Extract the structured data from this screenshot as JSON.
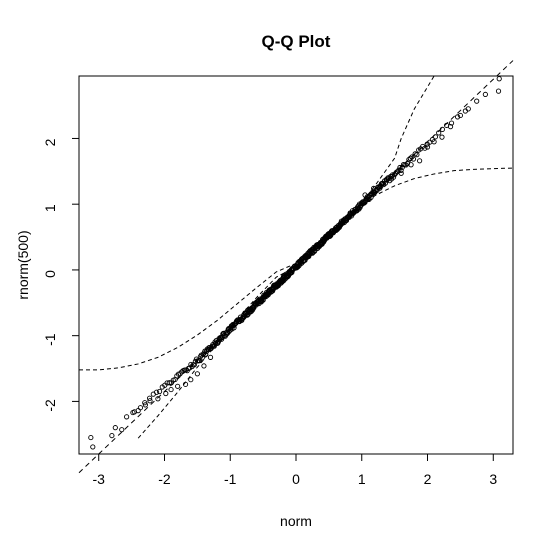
{
  "chart_data": {
    "type": "scatter",
    "title": "Q-Q Plot",
    "xlabel": "norm",
    "ylabel": "rnorm(500)",
    "xlim": [
      -3.3,
      3.3
    ],
    "ylim": [
      -2.8,
      2.95
    ],
    "x_ticks": [
      -3,
      -2,
      -1,
      0,
      1,
      2,
      3
    ],
    "y_ticks": [
      -2,
      -1,
      0,
      1,
      2
    ],
    "grid": false,
    "legend": "none",
    "reference_line": {
      "slope": 0.95,
      "intercept": 0.05
    },
    "confidence_band": {
      "lower": [
        [
          -3.3,
          -1.52
        ],
        [
          -3.0,
          -1.52
        ],
        [
          -2.7,
          -1.49
        ],
        [
          -2.4,
          -1.43
        ],
        [
          -2.1,
          -1.33
        ],
        [
          -1.8,
          -1.18
        ],
        [
          -1.5,
          -0.99
        ],
        [
          -1.2,
          -0.77
        ],
        [
          -0.9,
          -0.52
        ],
        [
          -0.6,
          -0.27
        ],
        [
          -0.3,
          -0.03
        ],
        [
          0.0,
          0.1
        ],
        [
          0.3,
          0.38
        ],
        [
          0.6,
          0.64
        ],
        [
          0.9,
          0.88
        ],
        [
          1.0,
          0.96
        ],
        [
          1.2,
          1.13
        ],
        [
          1.5,
          1.28
        ],
        [
          1.8,
          1.39
        ],
        [
          2.1,
          1.46
        ],
        [
          2.4,
          1.51
        ],
        [
          2.7,
          1.53
        ],
        [
          3.0,
          1.54
        ],
        [
          3.3,
          1.55
        ]
      ],
      "upper": [
        [
          -3.3,
          -3.45
        ],
        [
          -3.0,
          -3.26
        ],
        [
          -2.7,
          -2.95
        ],
        [
          -2.4,
          -2.56
        ],
        [
          -2.1,
          -2.22
        ],
        [
          -1.8,
          -1.86
        ],
        [
          -1.5,
          -1.48
        ],
        [
          -1.2,
          -1.12
        ],
        [
          -0.9,
          -0.76
        ],
        [
          -0.6,
          -0.42
        ],
        [
          -0.3,
          -0.11
        ],
        [
          0.0,
          0.05
        ],
        [
          0.3,
          0.3
        ],
        [
          0.6,
          0.58
        ],
        [
          0.9,
          0.89
        ],
        [
          1.2,
          1.28
        ],
        [
          1.5,
          1.7
        ],
        [
          1.6,
          2.0
        ],
        [
          1.8,
          2.45
        ],
        [
          2.1,
          2.95
        ],
        [
          2.4,
          3.1
        ],
        [
          2.7,
          3.15
        ],
        [
          3.0,
          3.2
        ],
        [
          3.3,
          3.2
        ]
      ]
    },
    "highlight_points": [
      {
        "x": -3.12,
        "y": -2.55
      },
      {
        "x": -2.8,
        "y": -2.52
      },
      {
        "x": -2.65,
        "y": -2.43
      },
      {
        "x": -2.48,
        "y": -2.17
      },
      {
        "x": -2.4,
        "y": -2.14
      },
      {
        "x": -2.3,
        "y": -2.02
      },
      {
        "x": -2.22,
        "y": -1.99
      },
      {
        "x": -2.1,
        "y": -1.96
      },
      {
        "x": -1.98,
        "y": -1.88
      },
      {
        "x": -1.9,
        "y": -1.82
      },
      {
        "x": -1.8,
        "y": -1.77
      },
      {
        "x": -1.68,
        "y": -1.74
      },
      {
        "x": -1.6,
        "y": -1.67
      },
      {
        "x": -1.5,
        "y": -1.58
      },
      {
        "x": -1.4,
        "y": -1.46
      },
      {
        "x": -1.3,
        "y": -1.33
      },
      {
        "x": 1.05,
        "y": 1.14
      },
      {
        "x": 1.18,
        "y": 1.24
      },
      {
        "x": 1.3,
        "y": 1.31
      },
      {
        "x": 1.45,
        "y": 1.42
      },
      {
        "x": 1.6,
        "y": 1.47
      },
      {
        "x": 1.75,
        "y": 1.6
      },
      {
        "x": 1.88,
        "y": 1.66
      },
      {
        "x": 2.0,
        "y": 1.87
      },
      {
        "x": 2.1,
        "y": 1.95
      },
      {
        "x": 2.22,
        "y": 2.02
      },
      {
        "x": 2.35,
        "y": 2.18
      },
      {
        "x": 2.5,
        "y": 2.35
      },
      {
        "x": 2.62,
        "y": 2.45
      },
      {
        "x": 2.88,
        "y": 2.67
      },
      {
        "x": 3.08,
        "y": 2.72
      }
    ],
    "point_generation": {
      "count": 500,
      "noise": 0.035
    }
  }
}
